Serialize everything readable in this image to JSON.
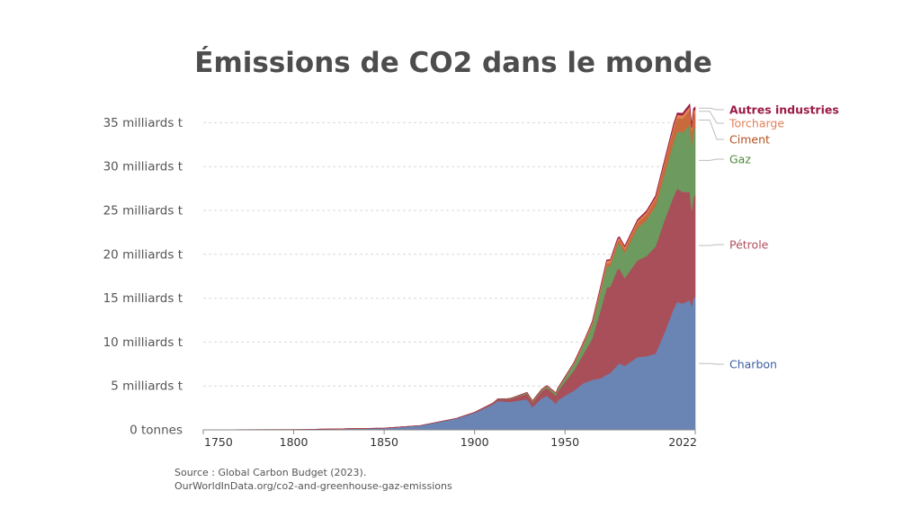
{
  "chart_data": {
    "type": "area",
    "stacked": true,
    "title": "Émissions de CO2 dans le monde",
    "ylim": [
      0,
      37.5
    ],
    "xlim": [
      1750,
      2022
    ],
    "y_ticks": [
      {
        "value": 0,
        "label": "0 tonnes"
      },
      {
        "value": 5,
        "label": "5 milliards t"
      },
      {
        "value": 10,
        "label": "10 milliards t"
      },
      {
        "value": 15,
        "label": "15 milliards t"
      },
      {
        "value": 20,
        "label": "20 milliards t"
      },
      {
        "value": 25,
        "label": "25 milliards t"
      },
      {
        "value": 30,
        "label": "30 milliards t"
      },
      {
        "value": 35,
        "label": "35 milliards t"
      }
    ],
    "x_ticks": [
      "1750",
      "1800",
      "1850",
      "1900",
      "1950",
      "2022"
    ],
    "grid": true,
    "legend_position": "right",
    "x": [
      1750,
      1800,
      1850,
      1870,
      1890,
      1900,
      1910,
      1913,
      1918,
      1920,
      1929,
      1932,
      1937,
      1940,
      1945,
      1946,
      1950,
      1955,
      1960,
      1965,
      1970,
      1973,
      1975,
      1979,
      1980,
      1983,
      1990,
      1995,
      2000,
      2005,
      2010,
      2012,
      2015,
      2019,
      2020,
      2021,
      2022
    ],
    "series": [
      {
        "name": "Charbon",
        "color": "#6a84b3",
        "values": [
          0.01,
          0.03,
          0.2,
          0.5,
          1.3,
          1.95,
          2.9,
          3.3,
          3.2,
          3.2,
          3.5,
          2.6,
          3.6,
          3.9,
          3.0,
          3.4,
          3.9,
          4.5,
          5.3,
          5.7,
          5.9,
          6.3,
          6.5,
          7.4,
          7.6,
          7.3,
          8.3,
          8.4,
          8.7,
          11.1,
          13.8,
          14.6,
          14.4,
          14.8,
          14.1,
          15.0,
          15.1
        ]
      },
      {
        "name": "Pétrole",
        "color": "#a94f5a",
        "values": [
          0,
          0,
          0,
          0,
          0.02,
          0.05,
          0.1,
          0.2,
          0.3,
          0.35,
          0.6,
          0.55,
          0.8,
          0.9,
          0.9,
          1.0,
          1.6,
          2.3,
          3.3,
          4.7,
          8.0,
          9.9,
          9.8,
          10.9,
          10.8,
          10.0,
          11.0,
          11.4,
          12.2,
          12.8,
          12.8,
          12.9,
          12.7,
          12.3,
          10.9,
          11.4,
          11.8
        ]
      },
      {
        "name": "Gaz",
        "color": "#6d9a5e",
        "values": [
          0,
          0,
          0,
          0,
          0,
          0.01,
          0.03,
          0.05,
          0.05,
          0.05,
          0.12,
          0.12,
          0.15,
          0.18,
          0.25,
          0.3,
          0.45,
          0.7,
          1.0,
          1.5,
          2.1,
          2.4,
          2.4,
          2.8,
          2.9,
          2.9,
          3.7,
          4.1,
          4.6,
          5.3,
          6.2,
          6.5,
          6.8,
          7.7,
          7.4,
          7.8,
          7.6
        ]
      },
      {
        "name": "Ciment",
        "color": "#c96a3d",
        "values": [
          0,
          0,
          0,
          0,
          0,
          0,
          0.01,
          0.01,
          0.01,
          0.01,
          0.03,
          0.03,
          0.04,
          0.05,
          0.04,
          0.05,
          0.07,
          0.1,
          0.15,
          0.2,
          0.3,
          0.33,
          0.33,
          0.37,
          0.38,
          0.4,
          0.57,
          0.67,
          0.78,
          1.1,
          1.5,
          1.55,
          1.55,
          1.65,
          1.65,
          1.7,
          1.6
        ]
      },
      {
        "name": "Torcharge",
        "color": "#e08550",
        "values": [
          0,
          0,
          0,
          0,
          0,
          0,
          0,
          0,
          0,
          0,
          0.02,
          0.02,
          0.02,
          0.02,
          0.03,
          0.03,
          0.04,
          0.1,
          0.15,
          0.2,
          0.3,
          0.35,
          0.3,
          0.25,
          0.25,
          0.25,
          0.25,
          0.25,
          0.25,
          0.3,
          0.35,
          0.35,
          0.4,
          0.42,
          0.4,
          0.42,
          0.4
        ]
      },
      {
        "name": "Autres industries",
        "color": "#9b1a46",
        "values": [
          0,
          0,
          0,
          0,
          0,
          0,
          0,
          0,
          0,
          0,
          0.01,
          0.01,
          0.01,
          0.01,
          0.01,
          0.01,
          0.02,
          0.03,
          0.04,
          0.05,
          0.07,
          0.08,
          0.08,
          0.09,
          0.1,
          0.1,
          0.12,
          0.13,
          0.15,
          0.17,
          0.2,
          0.21,
          0.22,
          0.27,
          0.28,
          0.3,
          0.3
        ]
      }
    ]
  },
  "legend": [
    {
      "label": "Autres industries",
      "color": "#9b1a46",
      "bold": true
    },
    {
      "label": "Torcharge",
      "color": "#e0825a",
      "bold": false
    },
    {
      "label": "Ciment",
      "color": "#b4501e",
      "bold": false
    },
    {
      "label": "Gaz",
      "color": "#4f8a3c",
      "bold": false
    },
    {
      "label": "Pétrole",
      "color": "#b1515e",
      "bold": false
    },
    {
      "label": "Charbon",
      "color": "#3b5fa0",
      "bold": false
    }
  ],
  "source": {
    "line1": "Source : Global Carbon Budget (2023).",
    "line2": "OurWorldInData.org/co2-and-greenhouse-gaz-emissions"
  }
}
